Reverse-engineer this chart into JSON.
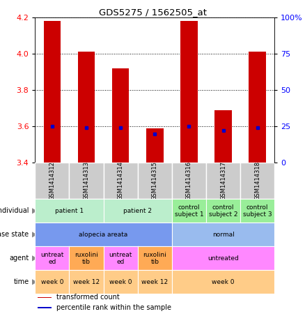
{
  "title": "GDS5275 / 1562505_at",
  "samples": [
    "GSM1414312",
    "GSM1414313",
    "GSM1414314",
    "GSM1414315",
    "GSM1414316",
    "GSM1414317",
    "GSM1414318"
  ],
  "transformed_count": [
    4.18,
    4.01,
    3.92,
    3.59,
    4.18,
    3.69,
    4.01
  ],
  "percentile_rank": [
    25,
    24,
    24,
    20,
    25,
    22,
    24
  ],
  "ylim": [
    3.4,
    4.2
  ],
  "yticks_left": [
    3.4,
    3.6,
    3.8,
    4.0,
    4.2
  ],
  "yticks_right": [
    0,
    25,
    50,
    75,
    100
  ],
  "bar_color": "#cc0000",
  "dot_color": "#0000cc",
  "rows": [
    {
      "key": "individual",
      "label": "individual",
      "cells": [
        {
          "text": "patient 1",
          "span": [
            0,
            1
          ],
          "color": "#bbeecc"
        },
        {
          "text": "patient 2",
          "span": [
            2,
            3
          ],
          "color": "#bbeecc"
        },
        {
          "text": "control\nsubject 1",
          "span": [
            4,
            4
          ],
          "color": "#99ee99"
        },
        {
          "text": "control\nsubject 2",
          "span": [
            5,
            5
          ],
          "color": "#99ee99"
        },
        {
          "text": "control\nsubject 3",
          "span": [
            6,
            6
          ],
          "color": "#99ee99"
        }
      ]
    },
    {
      "key": "disease_state",
      "label": "disease state",
      "cells": [
        {
          "text": "alopecia areata",
          "span": [
            0,
            3
          ],
          "color": "#7799ee"
        },
        {
          "text": "normal",
          "span": [
            4,
            6
          ],
          "color": "#99bbee"
        }
      ]
    },
    {
      "key": "agent",
      "label": "agent",
      "cells": [
        {
          "text": "untreat\ned",
          "span": [
            0,
            0
          ],
          "color": "#ff88ff"
        },
        {
          "text": "ruxolini\ntib",
          "span": [
            1,
            1
          ],
          "color": "#ffaa55"
        },
        {
          "text": "untreat\ned",
          "span": [
            2,
            2
          ],
          "color": "#ff88ff"
        },
        {
          "text": "ruxolini\ntib",
          "span": [
            3,
            3
          ],
          "color": "#ffaa55"
        },
        {
          "text": "untreated",
          "span": [
            4,
            6
          ],
          "color": "#ff88ff"
        }
      ]
    },
    {
      "key": "time",
      "label": "time",
      "cells": [
        {
          "text": "week 0",
          "span": [
            0,
            0
          ],
          "color": "#ffcc88"
        },
        {
          "text": "week 12",
          "span": [
            1,
            1
          ],
          "color": "#ffcc88"
        },
        {
          "text": "week 0",
          "span": [
            2,
            2
          ],
          "color": "#ffcc88"
        },
        {
          "text": "week 12",
          "span": [
            3,
            3
          ],
          "color": "#ffcc88"
        },
        {
          "text": "week 0",
          "span": [
            4,
            6
          ],
          "color": "#ffcc88"
        }
      ]
    }
  ],
  "legend": [
    {
      "color": "#cc0000",
      "label": "transformed count"
    },
    {
      "color": "#0000cc",
      "label": "percentile rank within the sample"
    }
  ],
  "sample_box_color": "#cccccc",
  "n_samples": 7
}
